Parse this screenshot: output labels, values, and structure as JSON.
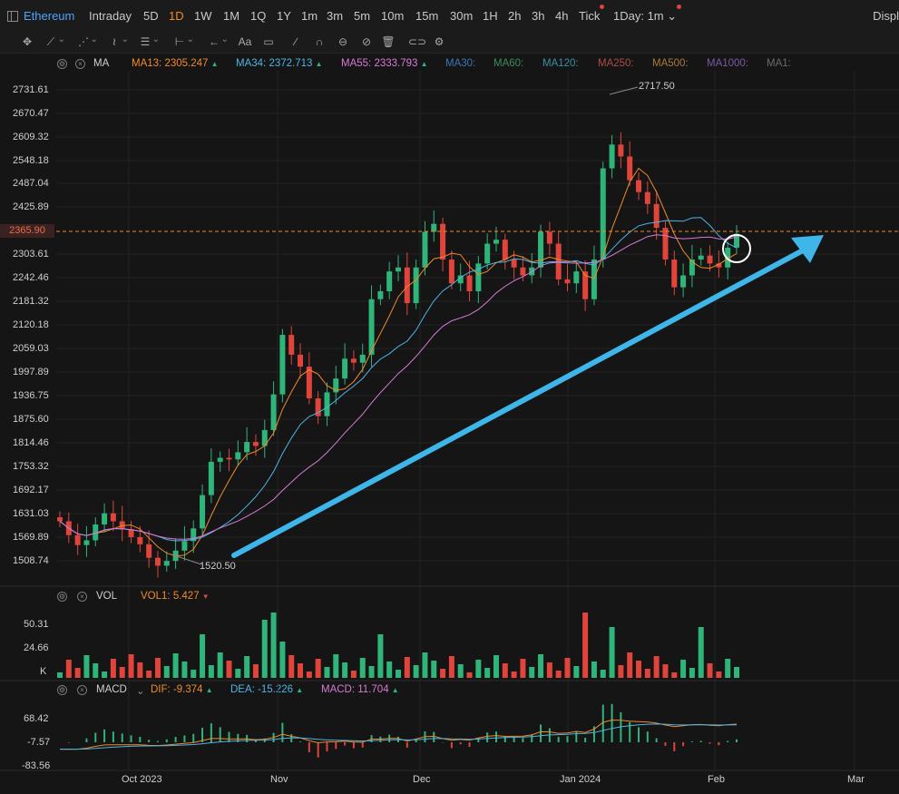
{
  "topbar": {
    "symbol": "Ethereum",
    "timeframes": [
      "Intraday",
      "5D",
      "1D",
      "1W",
      "1M",
      "1Q",
      "1Y",
      "1m",
      "3m",
      "5m",
      "10m",
      "15m",
      "30m",
      "1H",
      "2h",
      "3h",
      "4h",
      "Tick",
      "1Day: 1m"
    ],
    "active_timeframe": "1D",
    "right_label": "Displ"
  },
  "toolbar": {
    "tools": [
      "move-icon",
      "line-icon",
      "channel-icon",
      "pattern-icon",
      "measure-icon",
      "arrow-icon",
      "text-icon",
      "comment-icon",
      "brush-icon",
      "magnet-icon",
      "eye-icon",
      "hide-icon",
      "trash-icon",
      "link-icon",
      "settings-icon"
    ]
  },
  "main_legend": {
    "indicator": "MA",
    "items": [
      {
        "label": "MA13:",
        "value": "2305.247",
        "trend": "up",
        "color": "#f08a2c"
      },
      {
        "label": "MA34:",
        "value": "2372.713",
        "trend": "up",
        "color": "#4fb4e6"
      },
      {
        "label": "MA55:",
        "value": "2333.793",
        "trend": "up",
        "color": "#d67ad6"
      },
      {
        "label": "MA30:",
        "value": "",
        "trend": "",
        "color": "#3a78b8"
      },
      {
        "label": "MA60:",
        "value": "",
        "trend": "",
        "color": "#3f8a5c"
      },
      {
        "label": "MA120:",
        "value": "",
        "trend": "",
        "color": "#3a8fa8"
      },
      {
        "label": "MA250:",
        "value": "",
        "trend": "",
        "color": "#b04a4a"
      },
      {
        "label": "MA500:",
        "value": "",
        "trend": "",
        "color": "#a87a3a"
      },
      {
        "label": "MA1000:",
        "value": "",
        "trend": "",
        "color": "#7a5aa8"
      },
      {
        "label": "MA1:",
        "value": "",
        "trend": "",
        "color": "#6a6a6a"
      }
    ]
  },
  "price_axis": [
    "2731.61",
    "2670.47",
    "2609.32",
    "2548.18",
    "2487.04",
    "2425.89",
    "2365.90",
    "2303.61",
    "2242.46",
    "2181.32",
    "2120.18",
    "2059.03",
    "1997.89",
    "1936.75",
    "1875.60",
    "1814.46",
    "1753.32",
    "1692.17",
    "1631.03",
    "1569.89",
    "1508.74"
  ],
  "current_price": "2365.90",
  "annotations": {
    "high": "2717.50",
    "low": "1520.50"
  },
  "vol_legend": {
    "indicator": "VOL",
    "label": "VOL1:",
    "value": "5.427",
    "trend": "down"
  },
  "vol_axis": [
    "50.31",
    "24.66",
    "K"
  ],
  "macd_legend": {
    "indicator": "MACD",
    "items": [
      {
        "label": "DIF:",
        "value": "-9.374",
        "trend": "up",
        "color": "#f08a2c"
      },
      {
        "label": "DEA:",
        "value": "-15.226",
        "trend": "up",
        "color": "#4fb4e6"
      },
      {
        "label": "MACD:",
        "value": "11.704",
        "trend": "up",
        "color": "#d67ad6"
      }
    ]
  },
  "macd_axis": [
    "68.42",
    "-7.57",
    "-83.56"
  ],
  "time_axis": [
    "Oct 2023",
    "Nov",
    "Dec",
    "Jan 2024",
    "Feb",
    "Mar"
  ],
  "colors": {
    "up": "#2fb57a",
    "down": "#e0443a",
    "arrow": "#3fb6ea",
    "bg": "#151515"
  },
  "chart_data": {
    "type": "candlestick",
    "approx_daily_closes": [
      1640,
      1605,
      1580,
      1592,
      1632,
      1660,
      1640,
      1620,
      1600,
      1582,
      1548,
      1528,
      1540,
      1566,
      1590,
      1622,
      1706,
      1790,
      1800,
      1796,
      1814,
      1840,
      1830,
      1870,
      1960,
      2110,
      2060,
      2030,
      1950,
      1905,
      1965,
      2000,
      2050,
      2040,
      2060,
      2200,
      2220,
      2270,
      2280,
      2190,
      2280,
      2370,
      2390,
      2300,
      2240,
      2260,
      2220,
      2290,
      2340,
      2350,
      2300,
      2280,
      2260,
      2280,
      2370,
      2340,
      2250,
      2240,
      2270,
      2200,
      2300,
      2530,
      2590,
      2560,
      2500,
      2470,
      2440,
      2380,
      2300,
      2230,
      2260,
      2300,
      2310,
      2290,
      2280,
      2330,
      2365
    ],
    "ma13": "orange",
    "ma34": "cyan",
    "ma55": "magenta"
  }
}
